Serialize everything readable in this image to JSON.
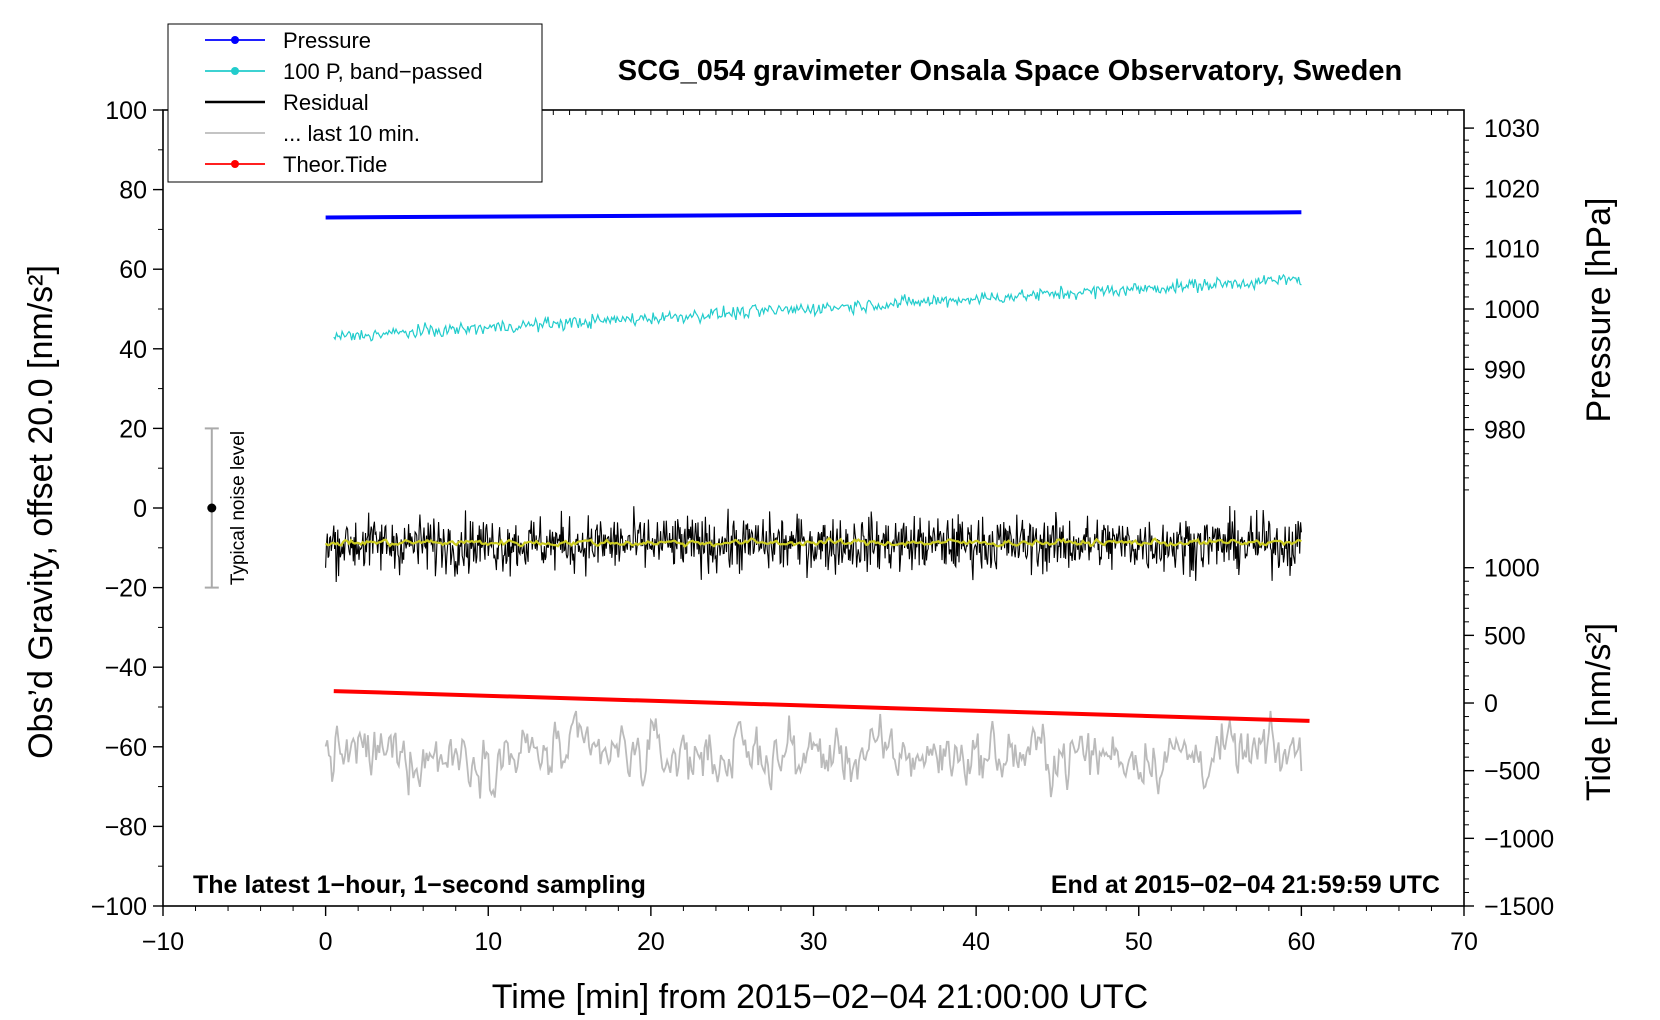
{
  "chart_data": {
    "type": "line",
    "title": "SCG_054 gravimeter Onsala Space Observatory, Sweden",
    "xlabel": "Time [min] from 2015−02−04 21:00:00 UTC",
    "ylabel_left": "Obs’d Gravity, offset 20.0 [nm/s²]",
    "ylabel_pressure": "Pressure [hPa]",
    "ylabel_tide": "Tide [nm/s²]",
    "xlim": [
      -10,
      70
    ],
    "ylim": [
      -100,
      100
    ],
    "xticks": [
      "−10",
      "0",
      "10",
      "20",
      "30",
      "40",
      "50",
      "60",
      "70"
    ],
    "yticks_left": [
      "100",
      "80",
      "60",
      "40",
      "20",
      "0",
      "−20",
      "−40",
      "−60",
      "−80",
      "−100"
    ],
    "pressure_axis": {
      "ticks": [
        "1030",
        "1020",
        "1010",
        "1000",
        "990",
        "980"
      ],
      "values": [
        1030,
        1020,
        1010,
        1000,
        990,
        980
      ],
      "range": [
        967,
        1033
      ]
    },
    "tide_axis": {
      "ticks": [
        "1000",
        "500",
        "0",
        "−500",
        "−1000",
        "−1500"
      ],
      "values": [
        1000,
        500,
        0,
        -500,
        -1000,
        -1500
      ],
      "range": [
        -1500,
        1000
      ],
      "gravity_range": [
        -100,
        -15
      ]
    },
    "legend": {
      "placement": "top-left",
      "entries": [
        {
          "label": "Pressure",
          "color": "#0000ff",
          "marker": true
        },
        {
          "label": "100 P, band−passed",
          "color": "#22cccc",
          "marker": true
        },
        {
          "label": "Residual",
          "color": "#000000",
          "marker": false
        },
        {
          "label": "... last 10 min.",
          "color": "#bbbbbb",
          "marker": false
        },
        {
          "label": "Theor.Tide",
          "color": "#ff0000",
          "marker": true
        }
      ]
    },
    "series": [
      {
        "name": "Pressure",
        "color": "#0000ff",
        "x_range": [
          0,
          60
        ],
        "y_start": 73,
        "y_end": 74.3
      },
      {
        "name": "100 P, band−passed",
        "color": "#22cccc",
        "x_range": [
          0.5,
          60
        ],
        "y_start": 43,
        "y_end": 57.5,
        "noise": 1.2
      },
      {
        "name": "Residual",
        "color": "#000000",
        "x_range": [
          0,
          60
        ],
        "y_mean": -9,
        "noise": 5,
        "min": -24,
        "max": 6
      },
      {
        "name": "Smoothed residual",
        "color": "#cccc22",
        "x_range": [
          0,
          60
        ],
        "y_mean": -8.7,
        "noise": 0.8
      },
      {
        "name": "... last 10 min.",
        "color": "#bbbbbb",
        "x_range": [
          0,
          60
        ],
        "y_mean": -62,
        "noise": 5,
        "min": -73,
        "max": -51
      },
      {
        "name": "Theor.Tide",
        "color": "#ff0000",
        "x_range": [
          0.5,
          60.5
        ],
        "y_start": -46,
        "y_end": -53.5
      }
    ],
    "noise_bar": {
      "label": "Typical noise level",
      "x": -7,
      "y_center": 0,
      "y_low": -20,
      "y_high": 20
    },
    "annotations": {
      "bottom_left": "The latest 1−hour, 1−second sampling",
      "bottom_right": "End at 2015−02−04 21:59:59 UTC"
    }
  }
}
